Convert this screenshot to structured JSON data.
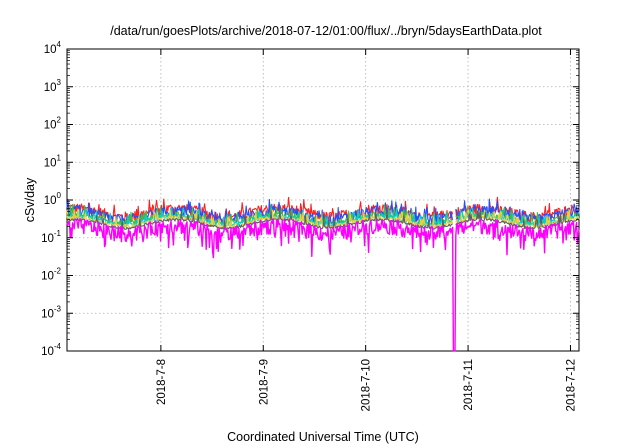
{
  "chart_data": {
    "type": "line",
    "title": "/data/run/goesPlots/archive/2018-07-12/01:00/flux/../bryn/5daysEarthData.plot",
    "xlabel": "Coordinated Universal Time (UTC)",
    "ylabel": "cSv/day",
    "y_scale": "log",
    "ylim": [
      0.0001,
      10000
    ],
    "xlim": [
      "2018-07-07T02:00",
      "2018-07-12T02:00"
    ],
    "x_ticks": [
      "2018-07-08",
      "2018-07-09",
      "2018-07-10",
      "2018-07-11",
      "2018-07-12"
    ],
    "x_tick_labels": [
      "2018-7-8",
      "2018-7-9",
      "2018-7-10",
      "2018-7-11",
      "2018-7-12"
    ],
    "y_tick_labels": [
      {
        "base": "10",
        "exp": "-4"
      },
      {
        "base": "10",
        "exp": "-3"
      },
      {
        "base": "10",
        "exp": "-2"
      },
      {
        "base": "10",
        "exp": "-1"
      },
      {
        "base": "10",
        "exp": "0"
      },
      {
        "base": "10",
        "exp": "1"
      },
      {
        "base": "10",
        "exp": "2"
      },
      {
        "base": "10",
        "exp": "3"
      },
      {
        "base": "10",
        "exp": "4"
      }
    ],
    "grid": true,
    "gap": {
      "start": "2018-07-10T20:30",
      "end": "2018-07-10T21:00",
      "min_value": 0.0001
    },
    "series": [
      {
        "color": "#ff2020",
        "baseline": 0.48,
        "spread": 0.35
      },
      {
        "color": "#2050ff",
        "baseline": 0.42,
        "spread": 0.3
      },
      {
        "color": "#40c040",
        "baseline": 0.33,
        "spread": 0.18
      },
      {
        "color": "#00d0d0",
        "baseline": 0.3,
        "spread": 0.15
      },
      {
        "color": "#e8d040",
        "baseline": 0.27,
        "spread": 0.12
      },
      {
        "color": "#606060",
        "baseline": 0.24,
        "spread": 0.08
      },
      {
        "color": "#ff00ff",
        "baseline": 0.18,
        "spread": 0.45
      }
    ]
  }
}
